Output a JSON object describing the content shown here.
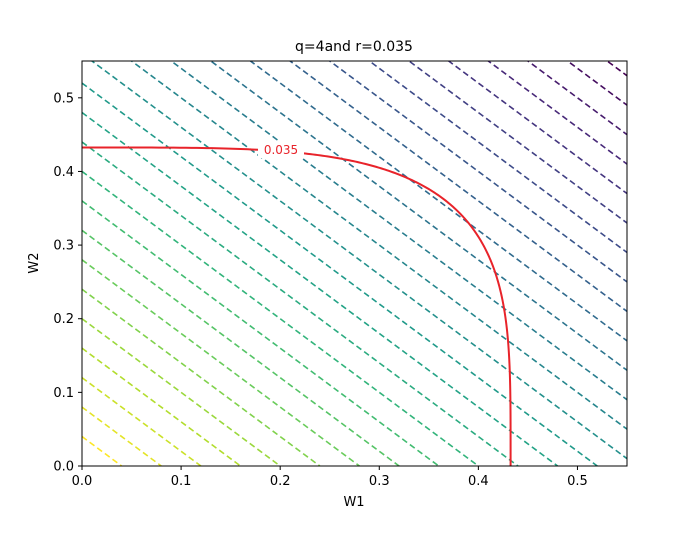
{
  "chart_data": {
    "type": "contour",
    "title": "q=4and r=0.035",
    "xlabel": "W1",
    "ylabel": "W2",
    "xlim": [
      0.0,
      0.55
    ],
    "ylim": [
      0.0,
      0.55
    ],
    "x_ticks": [
      "0.0",
      "0.1",
      "0.2",
      "0.3",
      "0.4",
      "0.5"
    ],
    "y_ticks": [
      "0.0",
      "0.1",
      "0.2",
      "0.3",
      "0.4",
      "0.5"
    ],
    "grid": false,
    "background_contours": {
      "function": "W1 + W2",
      "style": "dashed",
      "colormap": "viridis",
      "levels": [
        0.04,
        0.08,
        0.12,
        0.16,
        0.2,
        0.24,
        0.28,
        0.32,
        0.36,
        0.4,
        0.44,
        0.48,
        0.52,
        0.56,
        0.6,
        0.64,
        0.68,
        0.72,
        0.76,
        0.8,
        0.84,
        0.88,
        0.92,
        0.96,
        1.0,
        1.04,
        1.08
      ]
    },
    "constraint_contour": {
      "function": "W1^4 + W2^4",
      "level": 0.035,
      "label": "0.035",
      "color": "#e8232a",
      "style": "solid"
    }
  }
}
